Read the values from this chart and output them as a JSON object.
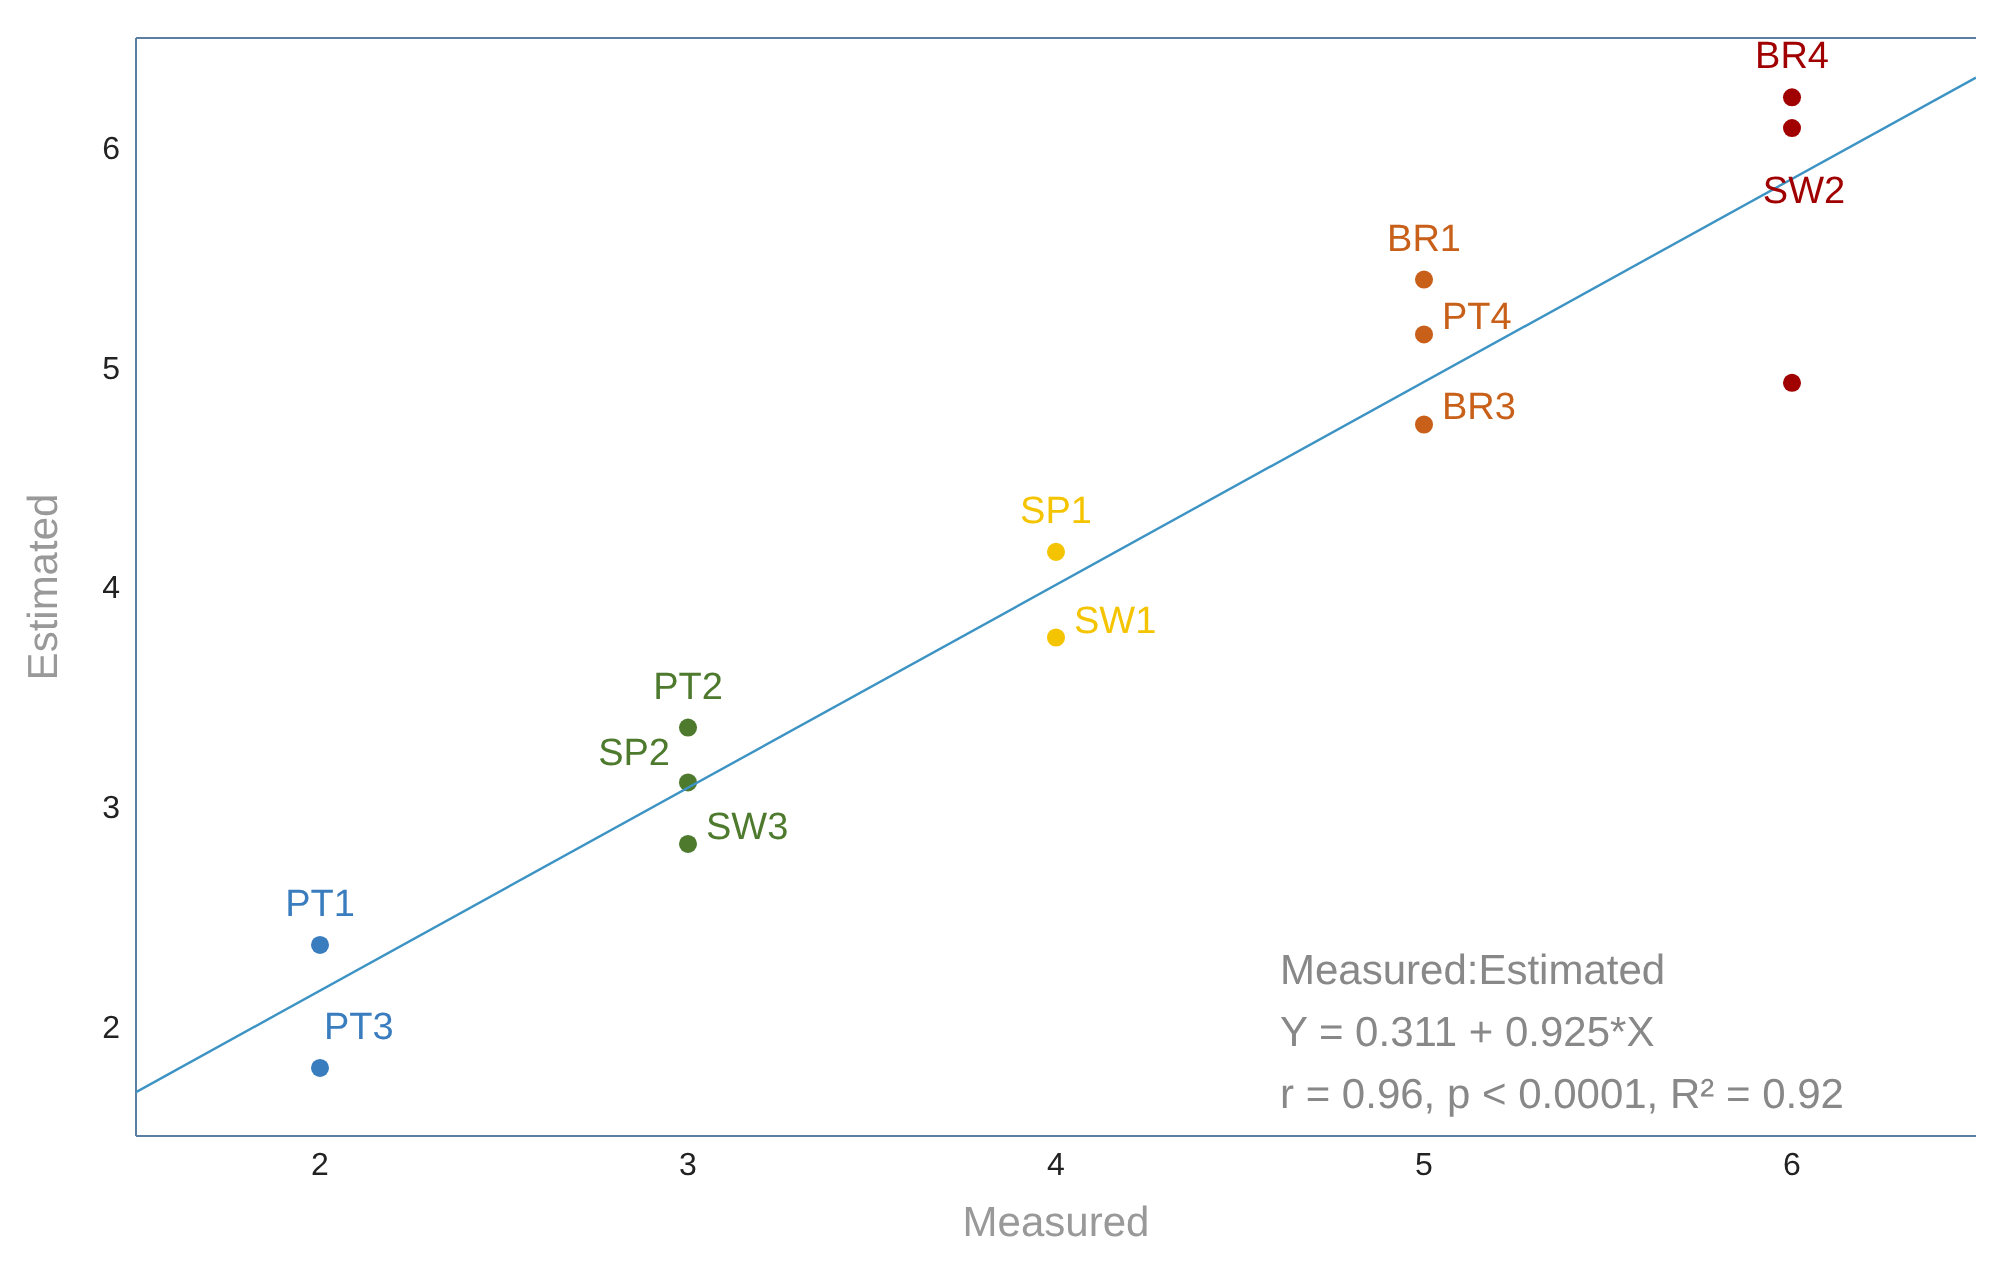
{
  "chart_data": {
    "type": "scatter",
    "xlabel": "Measured",
    "ylabel": "Estimated",
    "xlim": [
      1.5,
      6.5
    ],
    "xticks": [
      2,
      3,
      4,
      5,
      6
    ],
    "ylim": [
      1.5,
      6.5
    ],
    "yticks": [
      2,
      3,
      4,
      5,
      6
    ],
    "marker": "circle",
    "series": [
      {
        "color": "#3a7dbf",
        "x": [
          2,
          2
        ],
        "values": [
          2.37,
          1.81
        ],
        "value_labels": [
          "PT1",
          "PT3"
        ]
      },
      {
        "color": "#4e7a2e",
        "x": [
          3,
          3,
          3
        ],
        "values": [
          3.36,
          3.11,
          2.83
        ],
        "value_labels": [
          "PT2",
          "SP2",
          "SW3"
        ]
      },
      {
        "color": "#f5c400",
        "x": [
          4,
          4
        ],
        "values": [
          4.16,
          3.77
        ],
        "value_labels": [
          "SP1",
          "SW1"
        ]
      },
      {
        "color": "#c8601a",
        "x": [
          5,
          5,
          5
        ],
        "values": [
          5.4,
          5.15,
          4.74
        ],
        "value_labels": [
          "BR1",
          "PT4",
          "BR3"
        ]
      },
      {
        "color": "#a00000",
        "x": [
          6,
          6,
          6
        ],
        "values": [
          6.23,
          6.09,
          4.93
        ],
        "value_labels": [
          "BR4",
          "SW2",
          null
        ]
      },
      {
        "type": "line",
        "color": "#3c93c4",
        "x": [
          1.5,
          6.5
        ],
        "values": [
          1.7,
          6.32
        ],
        "marker": "none"
      }
    ],
    "annotations": [
      "Measured:Estimated",
      "Y = 0.311 + 0.925*X",
      "r = 0.96, p < 0.0001, R² = 0.92"
    ]
  }
}
